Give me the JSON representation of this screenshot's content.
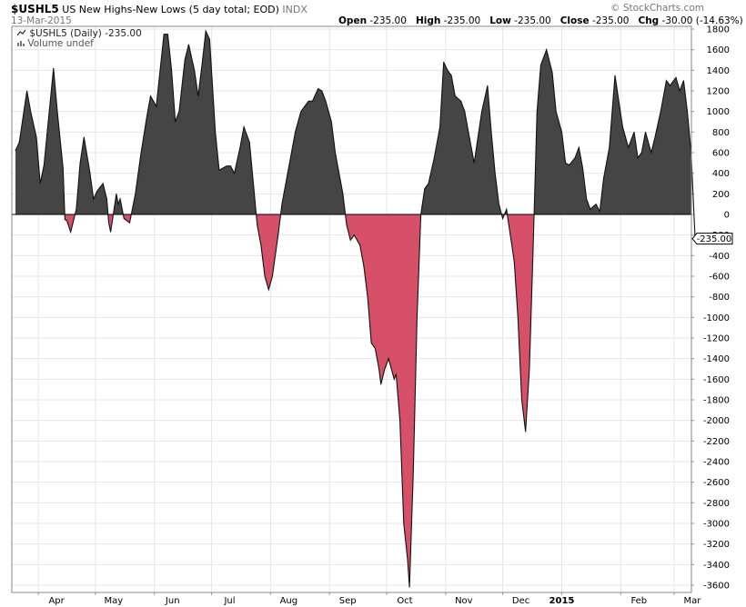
{
  "header": {
    "symbol": "$USHL5",
    "description": "US New Highs-New Lows (5 day total; EOD)",
    "exchange": "INDX",
    "date": "13-Mar-2015",
    "watermark": "© StockCharts.com",
    "ohlc": [
      {
        "label": "Open",
        "value": "-235.00"
      },
      {
        "label": "High",
        "value": "-235.00"
      },
      {
        "label": "Low",
        "value": "-235.00"
      },
      {
        "label": "Close",
        "value": "-235.00"
      },
      {
        "label": "Chg",
        "value": "-30.00 (-14.63%)"
      }
    ]
  },
  "legend": {
    "series_label": "$USHL5 (Daily) -235.00",
    "volume_label": "Volume undef"
  },
  "colors": {
    "positive_fill": "#454545",
    "negative_fill": "#d7506a",
    "line": "#111111",
    "grid": "#e6e6e6",
    "down_marker": "#c0392b"
  },
  "chart_data": {
    "type": "area",
    "x_start": "2014-03-20",
    "x_end": "2015-03-13",
    "ylim": [
      -3700,
      1850
    ],
    "yticks": [
      1800,
      1600,
      1400,
      1200,
      1000,
      800,
      600,
      400,
      200,
      0,
      -200,
      -400,
      -600,
      -800,
      -1000,
      -1200,
      -1400,
      -1600,
      -1800,
      -2000,
      -2200,
      -2400,
      -2600,
      -2800,
      -3000,
      -3200,
      -3400,
      -3600
    ],
    "xticks": [
      {
        "label": "Apr",
        "date": "2014-04-01"
      },
      {
        "label": "May",
        "date": "2014-05-01"
      },
      {
        "label": "Jun",
        "date": "2014-06-01"
      },
      {
        "label": "Jul",
        "date": "2014-07-01"
      },
      {
        "label": "Aug",
        "date": "2014-08-01"
      },
      {
        "label": "Sep",
        "date": "2014-09-01"
      },
      {
        "label": "Oct",
        "date": "2014-10-01"
      },
      {
        "label": "Nov",
        "date": "2014-11-01"
      },
      {
        "label": "Dec",
        "date": "2014-12-01"
      },
      {
        "label": "2015",
        "date": "2015-01-01",
        "bold": true
      },
      {
        "label": "Feb",
        "date": "2015-02-01"
      },
      {
        "label": "Mar",
        "date": "2015-03-01"
      }
    ],
    "last_value_label": "-235.00",
    "last_value": -235,
    "points": [
      [
        "2014-03-20",
        620
      ],
      [
        "2014-03-22",
        700
      ],
      [
        "2014-03-24",
        950
      ],
      [
        "2014-03-26",
        1200
      ],
      [
        "2014-03-28",
        1000
      ],
      [
        "2014-03-31",
        750
      ],
      [
        "2014-04-02",
        300
      ],
      [
        "2014-04-04",
        480
      ],
      [
        "2014-04-07",
        1050
      ],
      [
        "2014-04-09",
        1420
      ],
      [
        "2014-04-11",
        1000
      ],
      [
        "2014-04-14",
        450
      ],
      [
        "2014-04-15",
        -50
      ],
      [
        "2014-04-16",
        -60
      ],
      [
        "2014-04-18",
        -170
      ],
      [
        "2014-04-21",
        50
      ],
      [
        "2014-04-23",
        500
      ],
      [
        "2014-04-25",
        750
      ],
      [
        "2014-04-28",
        420
      ],
      [
        "2014-04-30",
        150
      ],
      [
        "2014-05-02",
        230
      ],
      [
        "2014-05-05",
        300
      ],
      [
        "2014-05-07",
        150
      ],
      [
        "2014-05-08",
        -80
      ],
      [
        "2014-05-09",
        -170
      ],
      [
        "2014-05-12",
        200
      ],
      [
        "2014-05-13",
        100
      ],
      [
        "2014-05-14",
        150
      ],
      [
        "2014-05-16",
        -40
      ],
      [
        "2014-05-19",
        -80
      ],
      [
        "2014-05-22",
        200
      ],
      [
        "2014-05-25",
        600
      ],
      [
        "2014-05-28",
        950
      ],
      [
        "2014-05-30",
        1150
      ],
      [
        "2014-06-02",
        1050
      ],
      [
        "2014-06-04",
        1400
      ],
      [
        "2014-06-06",
        1750
      ],
      [
        "2014-06-08",
        1750
      ],
      [
        "2014-06-10",
        1400
      ],
      [
        "2014-06-12",
        900
      ],
      [
        "2014-06-14",
        1000
      ],
      [
        "2014-06-17",
        1500
      ],
      [
        "2014-06-19",
        1650
      ],
      [
        "2014-06-22",
        1400
      ],
      [
        "2014-06-24",
        1150
      ],
      [
        "2014-06-26",
        1450
      ],
      [
        "2014-06-28",
        1780
      ],
      [
        "2014-06-30",
        1700
      ],
      [
        "2014-07-03",
        800
      ],
      [
        "2014-07-05",
        430
      ],
      [
        "2014-07-07",
        450
      ],
      [
        "2014-07-09",
        470
      ],
      [
        "2014-07-11",
        470
      ],
      [
        "2014-07-13",
        400
      ],
      [
        "2014-07-16",
        650
      ],
      [
        "2014-07-18",
        850
      ],
      [
        "2014-07-21",
        700
      ],
      [
        "2014-07-23",
        300
      ],
      [
        "2014-07-25",
        -100
      ],
      [
        "2014-07-27",
        -300
      ],
      [
        "2014-07-29",
        -600
      ],
      [
        "2014-07-31",
        -730
      ],
      [
        "2014-08-02",
        -600
      ],
      [
        "2014-08-05",
        -200
      ],
      [
        "2014-08-07",
        100
      ],
      [
        "2014-08-10",
        400
      ],
      [
        "2014-08-12",
        600
      ],
      [
        "2014-08-14",
        800
      ],
      [
        "2014-08-17",
        1000
      ],
      [
        "2014-08-19",
        1050
      ],
      [
        "2014-08-21",
        1100
      ],
      [
        "2014-08-23",
        1100
      ],
      [
        "2014-08-26",
        1220
      ],
      [
        "2014-08-28",
        1200
      ],
      [
        "2014-08-30",
        1100
      ],
      [
        "2014-09-02",
        900
      ],
      [
        "2014-09-04",
        600
      ],
      [
        "2014-09-06",
        400
      ],
      [
        "2014-09-08",
        200
      ],
      [
        "2014-09-10",
        -100
      ],
      [
        "2014-09-12",
        -250
      ],
      [
        "2014-09-14",
        -200
      ],
      [
        "2014-09-17",
        -300
      ],
      [
        "2014-09-19",
        -500
      ],
      [
        "2014-09-21",
        -800
      ],
      [
        "2014-09-23",
        -1250
      ],
      [
        "2014-09-25",
        -1300
      ],
      [
        "2014-09-27",
        -1500
      ],
      [
        "2014-09-28",
        -1650
      ],
      [
        "2014-09-30",
        -1500
      ],
      [
        "2014-10-02",
        -1400
      ],
      [
        "2014-10-05",
        -1600
      ],
      [
        "2014-10-06",
        -1550
      ],
      [
        "2014-10-08",
        -2000
      ],
      [
        "2014-10-10",
        -3000
      ],
      [
        "2014-10-12",
        -3350
      ],
      [
        "2014-10-13",
        -3620
      ],
      [
        "2014-10-15",
        -2500
      ],
      [
        "2014-10-17",
        -1000
      ],
      [
        "2014-10-19",
        0
      ],
      [
        "2014-10-21",
        250
      ],
      [
        "2014-10-23",
        300
      ],
      [
        "2014-10-26",
        550
      ],
      [
        "2014-10-29",
        850
      ],
      [
        "2014-10-31",
        1480
      ],
      [
        "2014-11-02",
        1400
      ],
      [
        "2014-11-04",
        1350
      ],
      [
        "2014-11-06",
        1150
      ],
      [
        "2014-11-09",
        1100
      ],
      [
        "2014-11-11",
        1000
      ],
      [
        "2014-11-13",
        800
      ],
      [
        "2014-11-16",
        500
      ],
      [
        "2014-11-18",
        750
      ],
      [
        "2014-11-20",
        1000
      ],
      [
        "2014-11-23",
        1250
      ],
      [
        "2014-11-25",
        800
      ],
      [
        "2014-11-27",
        400
      ],
      [
        "2014-11-29",
        100
      ],
      [
        "2014-12-01",
        -40
      ],
      [
        "2014-12-03",
        50
      ],
      [
        "2014-12-04",
        -80
      ],
      [
        "2014-12-07",
        -450
      ],
      [
        "2014-12-09",
        -1000
      ],
      [
        "2014-12-11",
        -1800
      ],
      [
        "2014-12-13",
        -2110
      ],
      [
        "2014-12-15",
        -1500
      ],
      [
        "2014-12-17",
        -300
      ],
      [
        "2014-12-19",
        1000
      ],
      [
        "2014-12-21",
        1450
      ],
      [
        "2014-12-24",
        1600
      ],
      [
        "2014-12-27",
        1380
      ],
      [
        "2014-12-29",
        1000
      ],
      [
        "2015-01-01",
        800
      ],
      [
        "2015-01-03",
        500
      ],
      [
        "2015-01-05",
        480
      ],
      [
        "2015-01-08",
        550
      ],
      [
        "2015-01-10",
        650
      ],
      [
        "2015-01-12",
        450
      ],
      [
        "2015-01-14",
        150
      ],
      [
        "2015-01-16",
        50
      ],
      [
        "2015-01-19",
        100
      ],
      [
        "2015-01-21",
        30
      ],
      [
        "2015-01-23",
        350
      ],
      [
        "2015-01-26",
        650
      ],
      [
        "2015-01-29",
        1350
      ],
      [
        "2015-01-31",
        1100
      ],
      [
        "2015-02-02",
        850
      ],
      [
        "2015-02-05",
        650
      ],
      [
        "2015-02-08",
        800
      ],
      [
        "2015-02-10",
        550
      ],
      [
        "2015-02-12",
        600
      ],
      [
        "2015-02-14",
        800
      ],
      [
        "2015-02-17",
        600
      ],
      [
        "2015-02-19",
        750
      ],
      [
        "2015-02-22",
        1000
      ],
      [
        "2015-02-25",
        1300
      ],
      [
        "2015-02-27",
        1250
      ],
      [
        "2015-02-28",
        1280
      ],
      [
        "2015-03-02",
        1330
      ],
      [
        "2015-03-04",
        1200
      ],
      [
        "2015-03-06",
        1300
      ],
      [
        "2015-03-08",
        1000
      ],
      [
        "2015-03-10",
        600
      ],
      [
        "2015-03-12",
        -205
      ],
      [
        "2015-03-13",
        -235
      ]
    ]
  }
}
